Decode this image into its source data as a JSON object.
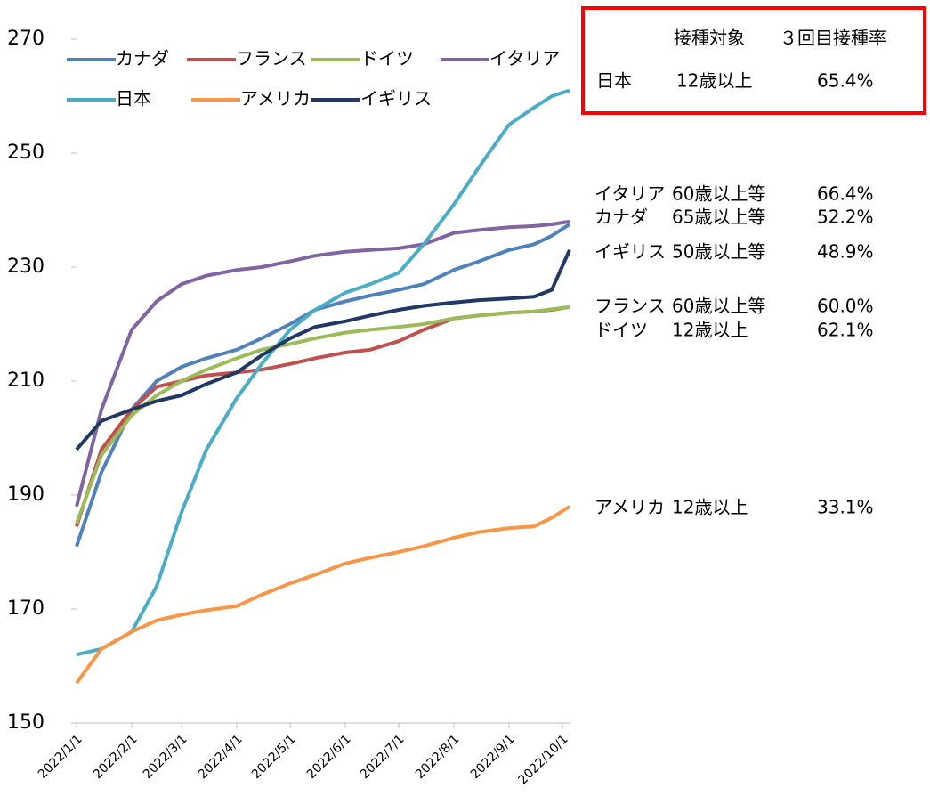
{
  "chart_data": {
    "type": "line",
    "x": [
      "2022/1/1",
      "2022/1/15",
      "2022/2/1",
      "2022/2/15",
      "2022/3/1",
      "2022/3/15",
      "2022/4/1",
      "2022/4/15",
      "2022/5/1",
      "2022/5/15",
      "2022/6/1",
      "2022/6/15",
      "2022/7/1",
      "2022/7/15",
      "2022/8/1",
      "2022/8/15",
      "2022/9/1",
      "2022/9/15",
      "2022/9/25",
      "2022/10/5"
    ],
    "series": [
      {
        "name": "カナダ",
        "color": "#4f81bd",
        "values": [
          181,
          194,
          205,
          210,
          212.5,
          214,
          215.5,
          217.5,
          220,
          222.5,
          224,
          225,
          226,
          227,
          229.5,
          231,
          233,
          234,
          235.5,
          237.5
        ]
      },
      {
        "name": "フランス",
        "color": "#c0504d",
        "values": [
          184.5,
          198,
          205,
          209,
          210,
          211,
          211.5,
          212,
          213,
          214,
          215,
          215.5,
          217,
          219,
          221,
          221.5,
          222,
          222.2,
          222.5,
          223
        ]
      },
      {
        "name": "ドイツ",
        "color": "#9bbb59",
        "values": [
          185,
          197,
          204,
          207.5,
          210,
          212,
          214,
          215.5,
          216.5,
          217.5,
          218.5,
          219,
          219.5,
          220,
          221,
          221.5,
          222,
          222.2,
          222.6,
          223
        ]
      },
      {
        "name": "イタリア",
        "color": "#8064a2",
        "values": [
          188,
          205,
          219,
          224,
          227,
          228.5,
          229.5,
          230,
          231,
          232,
          232.7,
          233,
          233.3,
          234,
          236,
          236.5,
          237,
          237.2,
          237.5,
          238
        ]
      },
      {
        "name": "日本",
        "color": "#4bacc6",
        "values": [
          162,
          163,
          166,
          174,
          187,
          198,
          207,
          213,
          219,
          222.5,
          225.5,
          227,
          229,
          234,
          241,
          247.5,
          255,
          258,
          260,
          261
        ]
      },
      {
        "name": "アメリカ",
        "color": "#f79646",
        "values": [
          157,
          163,
          166,
          168,
          169,
          169.8,
          170.5,
          172.5,
          174.5,
          176,
          178,
          179,
          180,
          181,
          182.5,
          183.5,
          184.2,
          184.5,
          186,
          188
        ]
      },
      {
        "name": "イギリス",
        "color": "#1f3864",
        "values": [
          198,
          203,
          205,
          206.5,
          207.5,
          209.5,
          211.5,
          214.5,
          217.5,
          219.5,
          220.5,
          221.5,
          222.5,
          223.2,
          223.8,
          224.2,
          224.5,
          224.8,
          226,
          233
        ]
      }
    ],
    "xlim": [
      "2022/1/1",
      "2022/10/6"
    ],
    "xticks": [
      "2022/1/1",
      "2022/2/1",
      "2022/3/1",
      "2022/4/1",
      "2022/5/1",
      "2022/6/1",
      "2022/7/1",
      "2022/8/1",
      "2022/9/1",
      "2022/10/1"
    ],
    "ylim": [
      150,
      270
    ],
    "yticks": [
      150,
      170,
      190,
      210,
      230,
      250,
      270
    ],
    "legend": "top-left"
  },
  "vaccination_table": {
    "header": [
      "接種対象",
      "３回目接種率"
    ],
    "rows": [
      [
        "日本",
        "12歳以上",
        "65.4%"
      ],
      [
        "イタリア",
        "60歳以上等",
        "66.4%"
      ],
      [
        "カナダ",
        "65歳以上等",
        "52.2%"
      ],
      [
        "イギリス",
        "50歳以上等",
        "48.9%"
      ],
      [
        "フランス",
        "60歳以上等",
        "60.0%"
      ],
      [
        "ドイツ",
        "12歳以上",
        "62.1%"
      ],
      [
        "アメリカ",
        "12歳以上",
        "33.1%"
      ]
    ]
  }
}
